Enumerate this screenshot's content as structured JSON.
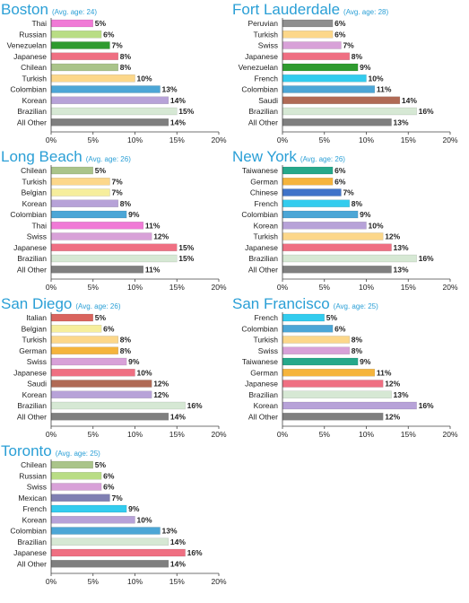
{
  "colors": {
    "title": "#2a9fd6",
    "Thai": "#f07ad6",
    "Russian": "#b9dd85",
    "Venezuelan": "#2f9b2f",
    "Japanese": "#ef6f82",
    "Chilean": "#aac48a",
    "Turkish": "#fcd78a",
    "Colombian": "#4ca6d6",
    "Korean": "#b7a2d8",
    "Brazilian": "#d6e8d4",
    "All Other": "#7f7f7f",
    "Peruvian": "#8f8f8f",
    "Swiss": "#d8a1d8",
    "French": "#33ccee",
    "Saudi": "#b06a55",
    "Belgian": "#f6ee9c",
    "Taiwanese": "#26a88a",
    "German": "#f5b43c",
    "Chinese": "#3f73c9",
    "Italian": "#d9645e",
    "Mexican": "#7f7fb2"
  },
  "chart_data": [
    {
      "type": "bar",
      "title": "Boston",
      "subtitle": "(Avg. age: 24)",
      "xlim": [
        0,
        20
      ],
      "ticks": [
        "0%",
        "5%",
        "10%",
        "15%",
        "20%"
      ],
      "categories": [
        "Thai",
        "Russian",
        "Venezuelan",
        "Japanese",
        "Chilean",
        "Turkish",
        "Colombian",
        "Korean",
        "Brazilian",
        "All Other"
      ],
      "values": [
        5,
        6,
        7,
        8,
        8,
        10,
        13,
        14,
        15,
        14
      ],
      "labels": [
        "5%",
        "6%",
        "7%",
        "8%",
        "8%",
        "10%",
        "13%",
        "14%",
        "15%",
        "14%"
      ]
    },
    {
      "type": "bar",
      "title": "Fort Lauderdale",
      "subtitle": "(Avg. age: 28)",
      "xlim": [
        0,
        20
      ],
      "ticks": [
        "0%",
        "5%",
        "10%",
        "15%",
        "20%"
      ],
      "categories": [
        "Peruvian",
        "Turkish",
        "Swiss",
        "Japanese",
        "Venezuelan",
        "French",
        "Colombian",
        "Saudi",
        "Brazilian",
        "All Other"
      ],
      "values": [
        6,
        6,
        7,
        8,
        9,
        10,
        11,
        14,
        16,
        13
      ],
      "labels": [
        "6%",
        "6%",
        "7%",
        "8%",
        "9%",
        "10%",
        "11%",
        "14%",
        "16%",
        "13%"
      ]
    },
    {
      "type": "bar",
      "title": "Long Beach",
      "subtitle": "(Avg. age: 26)",
      "xlim": [
        0,
        20
      ],
      "ticks": [
        "0%",
        "5%",
        "10%",
        "15%",
        "20%"
      ],
      "categories": [
        "Chilean",
        "Turkish",
        "Belgian",
        "Korean",
        "Colombian",
        "Thai",
        "Swiss",
        "Japanese",
        "Brazilian",
        "All Other"
      ],
      "values": [
        5,
        7,
        7,
        8,
        9,
        11,
        12,
        15,
        15,
        11
      ],
      "labels": [
        "5%",
        "7%",
        "7%",
        "8%",
        "9%",
        "11%",
        "12%",
        "15%",
        "15%",
        "11%"
      ]
    },
    {
      "type": "bar",
      "title": "New York",
      "subtitle": "(Avg. age: 26)",
      "xlim": [
        0,
        20
      ],
      "ticks": [
        "0%",
        "5%",
        "10%",
        "15%",
        "20%"
      ],
      "categories": [
        "Taiwanese",
        "German",
        "Chinese",
        "French",
        "Colombian",
        "Korean",
        "Turkish",
        "Japanese",
        "Brazilian",
        "All Other"
      ],
      "values": [
        6,
        6,
        7,
        8,
        9,
        10,
        12,
        13,
        16,
        13
      ],
      "labels": [
        "6%",
        "6%",
        "7%",
        "8%",
        "9%",
        "10%",
        "12%",
        "13%",
        "16%",
        "13%"
      ]
    },
    {
      "type": "bar",
      "title": "San Diego",
      "subtitle": "(Avg. age: 26)",
      "xlim": [
        0,
        20
      ],
      "ticks": [
        "0%",
        "5%",
        "10%",
        "15%",
        "20%"
      ],
      "categories": [
        "Italian",
        "Belgian",
        "Turkish",
        "German",
        "Swiss",
        "Japanese",
        "Saudi",
        "Korean",
        "Brazilian",
        "All Other"
      ],
      "values": [
        5,
        6,
        8,
        8,
        9,
        10,
        12,
        12,
        16,
        14
      ],
      "labels": [
        "5%",
        "6%",
        "8%",
        "8%",
        "9%",
        "10%",
        "12%",
        "12%",
        "16%",
        "14%"
      ]
    },
    {
      "type": "bar",
      "title": "San Francisco",
      "subtitle": "(Avg. age: 25)",
      "xlim": [
        0,
        20
      ],
      "ticks": [
        "0%",
        "5%",
        "10%",
        "15%",
        "20%"
      ],
      "categories": [
        "French",
        "Colombian",
        "Turkish",
        "Swiss",
        "Taiwanese",
        "German",
        "Japanese",
        "Brazilian",
        "Korean",
        "All Other"
      ],
      "values": [
        5,
        6,
        8,
        8,
        9,
        11,
        12,
        13,
        16,
        12
      ],
      "labels": [
        "5%",
        "6%",
        "8%",
        "8%",
        "9%",
        "11%",
        "12%",
        "13%",
        "16%",
        "12%"
      ]
    },
    {
      "type": "bar",
      "title": "Toronto",
      "subtitle": "(Avg. age: 25)",
      "xlim": [
        0,
        20
      ],
      "ticks": [
        "0%",
        "5%",
        "10%",
        "15%",
        "20%"
      ],
      "categories": [
        "Chilean",
        "Russian",
        "Swiss",
        "Mexican",
        "French",
        "Korean",
        "Colombian",
        "Brazilian",
        "Japanese",
        "All Other"
      ],
      "values": [
        5,
        6,
        6,
        7,
        9,
        10,
        13,
        14,
        16,
        14
      ],
      "labels": [
        "5%",
        "6%",
        "6%",
        "7%",
        "9%",
        "10%",
        "13%",
        "14%",
        "16%",
        "14%"
      ]
    }
  ]
}
